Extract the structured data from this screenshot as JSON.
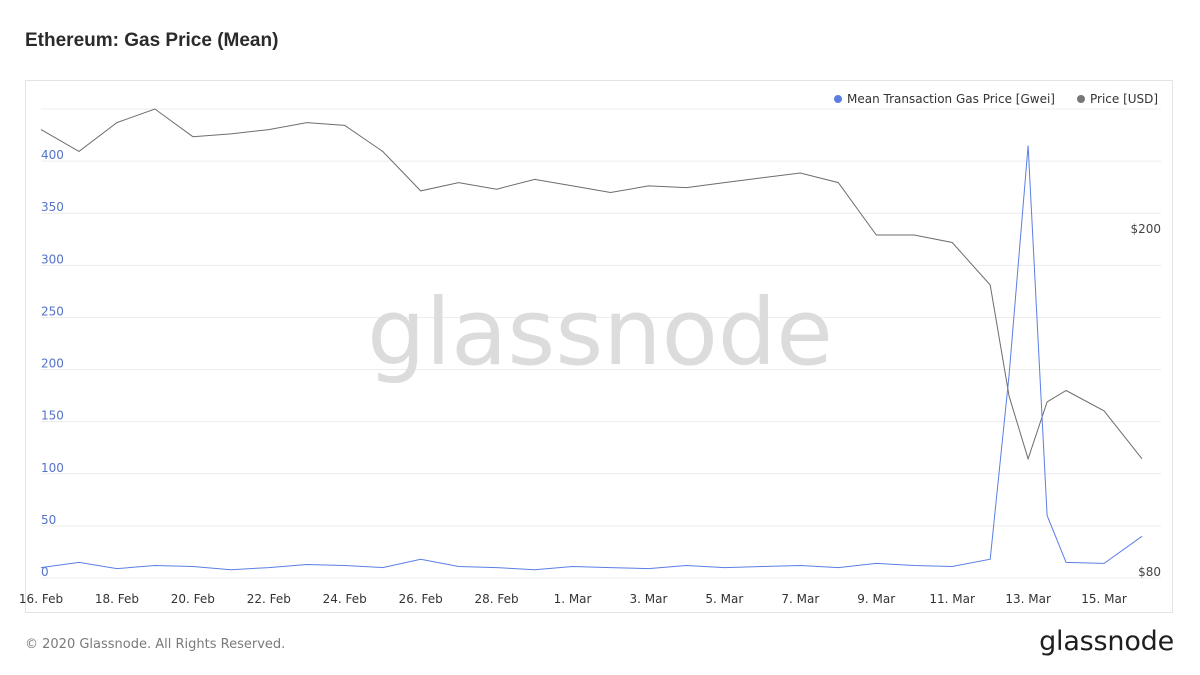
{
  "header": {
    "title": "Ethereum: Gas Price (Mean)"
  },
  "footer": {
    "copyright": "© 2020 Glassnode. All Rights Reserved.",
    "logo_text": "glassnode"
  },
  "watermark": "glassnode",
  "colors": {
    "gas": "#5b7ee5",
    "price": "#6d6d6d",
    "grid": "#ececec",
    "axis_left": "#5573c9"
  },
  "chart_data": {
    "type": "line",
    "title": "Ethereum: Gas Price (Mean)",
    "legend": {
      "placement": "top-right",
      "items": [
        {
          "name": "Mean Transaction Gas Price [Gwei]",
          "color": "#5b7ee5"
        },
        {
          "name": "Price [USD]",
          "color": "#777777"
        }
      ]
    },
    "x_axis": {
      "type": "date",
      "range": [
        "2020-02-16",
        "2020-03-16"
      ],
      "ticks": [
        "16. Feb",
        "18. Feb",
        "20. Feb",
        "22. Feb",
        "24. Feb",
        "26. Feb",
        "28. Feb",
        "1. Mar",
        "3. Mar",
        "5. Mar",
        "7. Mar",
        "9. Mar",
        "11. Mar",
        "13. Mar",
        "15. Mar"
      ]
    },
    "y_axis_left": {
      "label": "",
      "range": [
        0,
        450
      ],
      "ticks": [
        0,
        50,
        100,
        150,
        200,
        250,
        300,
        350,
        400
      ]
    },
    "y_axis_right": {
      "label": "",
      "scale": "log",
      "range": [
        80,
        280
      ],
      "tick_labels": [
        "$80",
        "$200"
      ],
      "tick_values": [
        80,
        200
      ]
    },
    "grid": true,
    "series": [
      {
        "name": "Mean Transaction Gas Price [Gwei]",
        "axis": "left",
        "x": [
          "2020-02-16",
          "2020-02-17",
          "2020-02-18",
          "2020-02-19",
          "2020-02-20",
          "2020-02-21",
          "2020-02-22",
          "2020-02-23",
          "2020-02-24",
          "2020-02-25",
          "2020-02-26",
          "2020-02-27",
          "2020-02-28",
          "2020-02-29",
          "2020-03-01",
          "2020-03-02",
          "2020-03-03",
          "2020-03-04",
          "2020-03-05",
          "2020-03-06",
          "2020-03-07",
          "2020-03-08",
          "2020-03-09",
          "2020-03-10",
          "2020-03-11",
          "2020-03-12",
          "2020-03-12T12:00",
          "2020-03-13",
          "2020-03-13T12:00",
          "2020-03-14",
          "2020-03-15",
          "2020-03-16"
        ],
        "values": [
          10,
          15,
          9,
          12,
          11,
          8,
          10,
          13,
          12,
          10,
          18,
          11,
          10,
          8,
          11,
          10,
          9,
          12,
          10,
          11,
          12,
          10,
          14,
          12,
          11,
          18,
          195,
          415,
          60,
          15,
          14,
          40
        ]
      },
      {
        "name": "Price [USD]",
        "axis": "right",
        "x": [
          "2020-02-16",
          "2020-02-17",
          "2020-02-18",
          "2020-02-19",
          "2020-02-20",
          "2020-02-21",
          "2020-02-22",
          "2020-02-23",
          "2020-02-24",
          "2020-02-25",
          "2020-02-26",
          "2020-02-27",
          "2020-02-28",
          "2020-02-29",
          "2020-03-01",
          "2020-03-02",
          "2020-03-03",
          "2020-03-04",
          "2020-03-05",
          "2020-03-06",
          "2020-03-07",
          "2020-03-08",
          "2020-03-09",
          "2020-03-10",
          "2020-03-11",
          "2020-03-12",
          "2020-03-12T12:00",
          "2020-03-13",
          "2020-03-13T12:00",
          "2020-03-14",
          "2020-03-15",
          "2020-03-16"
        ],
        "values": [
          265,
          250,
          270,
          280,
          260,
          262,
          265,
          270,
          268,
          250,
          225,
          230,
          226,
          232,
          228,
          224,
          228,
          227,
          230,
          233,
          236,
          230,
          200,
          200,
          196,
          175,
          130,
          110,
          128,
          132,
          125,
          110
        ]
      }
    ]
  }
}
